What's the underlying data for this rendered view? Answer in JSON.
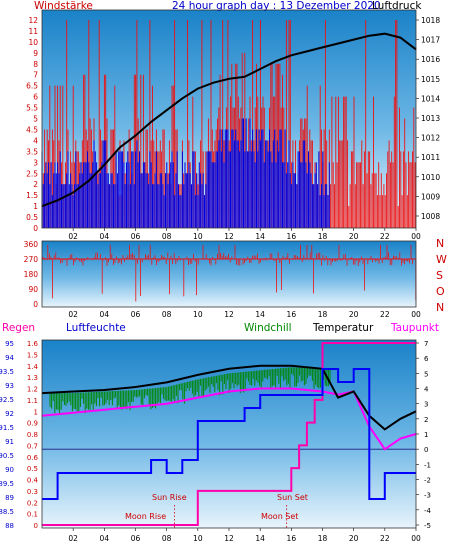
{
  "header": {
    "wind_label": "Windstärke",
    "title": "24 hour graph day : 13 Dezember 2020",
    "pressure_label": "Luftdruck"
  },
  "wind_scale_ticks": [
    "12",
    "11",
    "10",
    "9",
    "8",
    "7",
    "6.5",
    "6",
    "5.5",
    "5",
    "4.5",
    "4",
    "3.5",
    "3",
    "2.5",
    "2",
    "1.5",
    "1",
    "0.5",
    "0"
  ],
  "pressure_ticks": [
    "1018",
    "1017",
    "1016",
    "1015",
    "1014",
    "1013",
    "1012",
    "1011",
    "1010",
    "1009",
    "1008"
  ],
  "hour_ticks": [
    "02",
    "04",
    "06",
    "08",
    "10",
    "12",
    "14",
    "16",
    "18",
    "20",
    "22",
    "00"
  ],
  "direction_ticks": [
    "360",
    "270",
    "180",
    "90",
    "0"
  ],
  "direction_letters": [
    "N",
    "W",
    "S",
    "O",
    "N"
  ],
  "bottom_legend": {
    "rain": "Regen",
    "humidity": "Luftfeuchte",
    "windchill": "Windchill",
    "temperature": "Temperatur",
    "dewpoint": "Taupunkt"
  },
  "humidity_ticks": [
    "95",
    "94",
    "93.5",
    "93",
    "92.5",
    "92",
    "91.5",
    "91",
    "90.5",
    "90",
    "89.5",
    "89",
    "88.5",
    "88"
  ],
  "rain_ticks": [
    "1.6",
    "1.5",
    "1.4",
    "1.3",
    "1.2",
    "1.1",
    "1",
    "0.9",
    "0.8",
    "0.7",
    "0.6",
    "0.5",
    "0.4",
    "0.3",
    "0.2",
    "0.1",
    "0"
  ],
  "temp_ticks": [
    "7",
    "6",
    "5",
    "4",
    "3",
    "2",
    "1",
    "0",
    "-1",
    "-2",
    "-3",
    "-4",
    "-5"
  ],
  "annotations": {
    "sun_rise": "Sun Rise",
    "sun_set": "Sun Set",
    "moon_rise": "Moon Rise",
    "moon_set": "Moon Set"
  },
  "colors": {
    "wind_red": "#ee1111",
    "wind_blue": "#0000dd",
    "pressure": "#000000",
    "temperature": "#000000",
    "windchill": "#008800",
    "dewpoint": "#ff00ff",
    "rain": "#ff00aa",
    "humidity": "#0000ff",
    "title": "#0000cc",
    "axis_label": "#cc0000"
  },
  "chart_data": [
    {
      "type": "line",
      "title": "24 hour graph day : 13 Dezember 2020",
      "series": [
        {
          "name": "Luftdruck",
          "x": [
            0,
            1,
            2,
            3,
            4,
            5,
            6,
            7,
            8,
            9,
            10,
            11,
            12,
            13,
            14,
            15,
            16,
            17,
            18,
            19,
            20,
            21,
            22,
            23,
            24
          ],
          "values": [
            1008.5,
            1008.8,
            1009.2,
            1009.8,
            1010.6,
            1011.5,
            1012.1,
            1012.8,
            1013.4,
            1014.0,
            1014.5,
            1014.8,
            1015.0,
            1015.1,
            1015.5,
            1015.9,
            1016.2,
            1016.4,
            1016.6,
            1016.8,
            1017.0,
            1017.2,
            1017.3,
            1017.1,
            1016.5
          ]
        },
        {
          "name": "Windstärke",
          "x": [
            0,
            1,
            2,
            3,
            4,
            5,
            6,
            7,
            8,
            9,
            10,
            11,
            12,
            13,
            14,
            15,
            16,
            17,
            18,
            19,
            20,
            21,
            22,
            23,
            24
          ],
          "values": [
            3.5,
            3.5,
            3.5,
            4,
            4,
            3.5,
            4,
            3.5,
            3.5,
            3.5,
            3.5,
            4,
            5,
            5.5,
            5,
            5,
            4,
            4,
            3.5,
            3,
            3,
            3,
            3,
            2.5,
            2.5
          ]
        }
      ],
      "xlabel": "",
      "ylim_wind": [
        0,
        12
      ],
      "ylim_pressure": [
        1008,
        1018
      ]
    },
    {
      "type": "line",
      "xlabel": "",
      "series": [
        {
          "name": "N W S O N",
          "x": [
            0,
            2,
            4,
            6,
            8,
            10,
            12,
            14,
            16,
            18,
            20,
            22,
            24
          ],
          "values": [
            270,
            270,
            270,
            270,
            270,
            270,
            270,
            270,
            270,
            270,
            270,
            270,
            270
          ]
        }
      ],
      "ylim": [
        0,
        360
      ]
    },
    {
      "type": "line",
      "series": [
        {
          "name": "Temperatur",
          "x": [
            0,
            2,
            4,
            6,
            8,
            10,
            12,
            14,
            16,
            18,
            19,
            20,
            21,
            22,
            23,
            24
          ],
          "values": [
            3.7,
            3.8,
            3.9,
            4.1,
            4.4,
            4.9,
            5.3,
            5.5,
            5.5,
            5.3,
            3.4,
            3.8,
            2.2,
            1.3,
            2.0,
            2.5
          ]
        },
        {
          "name": "Windchill",
          "x": [
            0,
            2,
            4,
            6,
            8,
            10,
            12,
            14,
            16,
            18
          ],
          "values": [
            3.5,
            3.5,
            3.6,
            3.7,
            3.9,
            4.4,
            4.8,
            5.0,
            5.2,
            5.1
          ]
        },
        {
          "name": "Taupunkt",
          "x": [
            0,
            2,
            4,
            6,
            8,
            10,
            12,
            14,
            16,
            18,
            19,
            20,
            21,
            22,
            23,
            24
          ],
          "values": [
            2.2,
            2.4,
            2.6,
            2.8,
            3.0,
            3.4,
            3.8,
            4.0,
            4.0,
            3.8,
            3.6,
            3.8,
            1.5,
            0.0,
            0.7,
            1.0
          ]
        },
        {
          "name": "Regen",
          "x": [
            0,
            10,
            10,
            15,
            16,
            16.5,
            17,
            17.5,
            18,
            18,
            24
          ],
          "values": [
            0,
            0,
            0.3,
            0.3,
            0.5,
            0.7,
            0.9,
            1.1,
            1.2,
            1.6,
            1.6
          ]
        },
        {
          "name": "Luftfeuchte",
          "x": [
            0,
            1,
            1,
            7,
            7,
            8,
            8,
            9,
            9,
            10,
            10,
            13,
            13,
            14,
            14,
            18,
            18,
            19,
            19,
            20,
            20,
            21,
            21,
            22,
            22,
            24
          ],
          "values": [
            89,
            89,
            90,
            90,
            90.5,
            90.5,
            90,
            90,
            90.5,
            90.5,
            92,
            92,
            92.5,
            92.5,
            93,
            93,
            94,
            94,
            93.5,
            93.5,
            94,
            94,
            89,
            89,
            90,
            90
          ]
        }
      ],
      "ylim_temp": [
        -5,
        7
      ],
      "ylim_rain": [
        0,
        1.6
      ],
      "ylim_humidity": [
        88,
        95
      ]
    }
  ]
}
